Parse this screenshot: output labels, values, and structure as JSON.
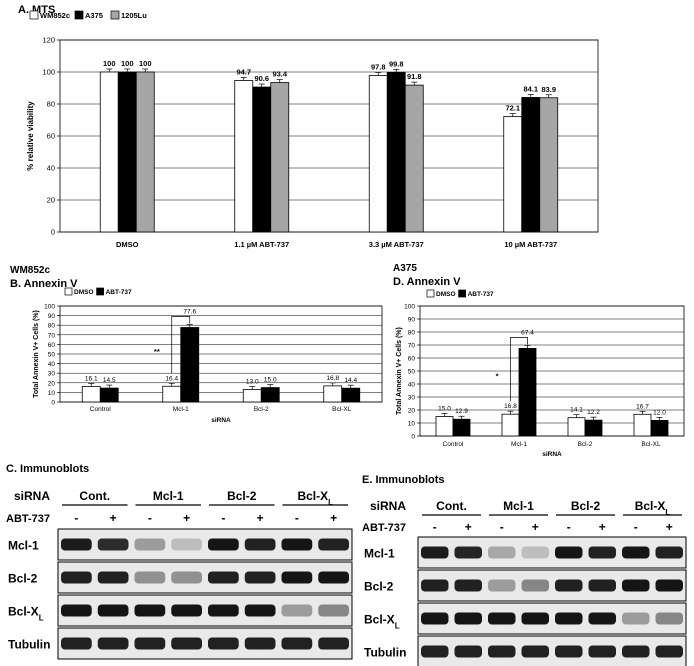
{
  "panels": {
    "a": "A.  MTS",
    "b": "B.  Annexin V",
    "b_cell": "WM852c",
    "c": "C. Immunoblots",
    "d": "D.  Annexin V",
    "d_cell": "A375",
    "e": "E. Immunoblots"
  },
  "colors": {
    "white_bar": "#ffffff",
    "black_bar": "#000000",
    "gray_bar": "#a6a6a6",
    "plot_bg": "#ffffff",
    "grid": "#000000"
  },
  "chart_data": [
    {
      "id": "A",
      "type": "bar",
      "ylabel": "% relative viability",
      "xlabel": "",
      "ylim": [
        0,
        120
      ],
      "yticks": [
        0,
        20,
        40,
        60,
        80,
        100,
        120
      ],
      "grid": true,
      "legend_position": "top-left",
      "categories": [
        "DMSO",
        "1.1 µM ABT-737",
        "3.3 µM ABT-737",
        "10 µM ABT-737"
      ],
      "series": [
        {
          "name": "WM852c",
          "values": [
            100,
            94.7,
            97.8,
            72.1
          ],
          "labels": [
            "100",
            "94.7",
            "97.8",
            "72.1"
          ],
          "color": "#ffffff"
        },
        {
          "name": "A375",
          "values": [
            100,
            90.6,
            99.8,
            84.1
          ],
          "labels": [
            "100",
            "90.6",
            "99.8",
            "84.1"
          ],
          "color": "#000000"
        },
        {
          "name": "1205Lu",
          "values": [
            100,
            93.4,
            91.8,
            83.9
          ],
          "labels": [
            "100",
            "93.4",
            "91.8",
            "83.9"
          ],
          "color": "#a6a6a6"
        }
      ]
    },
    {
      "id": "B",
      "type": "bar",
      "ylabel": "Total Annexin V+ Cells (%)",
      "xlabel": "siRNA",
      "ylim": [
        0,
        100
      ],
      "yticks": [
        0,
        10,
        20,
        30,
        40,
        50,
        60,
        70,
        80,
        90,
        100
      ],
      "grid": true,
      "legend_position": "top-left",
      "categories": [
        "Control",
        "Mcl-1",
        "Bcl-2",
        "Bcl-XL"
      ],
      "series": [
        {
          "name": "DMSO",
          "values": [
            16.1,
            16.4,
            13.0,
            16.8
          ],
          "labels": [
            "16.1",
            "16.4",
            "13.0",
            "16.8"
          ],
          "color": "#ffffff"
        },
        {
          "name": "ABT-737",
          "values": [
            14.5,
            77.6,
            15.0,
            14.4
          ],
          "labels": [
            "14.5",
            "77.6",
            "15.0",
            "14.4"
          ],
          "color": "#000000"
        }
      ],
      "significance": {
        "text": "**",
        "category": "Mcl-1"
      }
    },
    {
      "id": "D",
      "type": "bar",
      "ylabel": "Total Annexin V+ Cells (%)",
      "xlabel": "siRNA",
      "ylim": [
        0,
        100
      ],
      "yticks": [
        0,
        10,
        20,
        30,
        40,
        50,
        60,
        70,
        80,
        90,
        100
      ],
      "grid": true,
      "legend_position": "top-left",
      "categories": [
        "Control",
        "Mcl-1",
        "Bcl-2",
        "Bcl-XL"
      ],
      "series": [
        {
          "name": "DMSO",
          "values": [
            15.0,
            16.8,
            14.1,
            16.7
          ],
          "labels": [
            "15.0",
            "16.8",
            "14.1",
            "16.7"
          ],
          "color": "#ffffff"
        },
        {
          "name": "ABT-737",
          "values": [
            12.9,
            67.4,
            12.2,
            12.0
          ],
          "labels": [
            "12.9",
            "67.4",
            "12.2",
            "12.0"
          ],
          "color": "#000000"
        }
      ],
      "significance": {
        "text": "*",
        "category": "Mcl-1"
      }
    }
  ],
  "blots": [
    {
      "id": "C",
      "sirna_label": "siRNA",
      "drug_label": "ABT-737",
      "groups": [
        "Cont.",
        "Mcl-1",
        "Bcl-2",
        "Bcl-X"
      ],
      "last_group_subscript": "L",
      "treatments": [
        "-",
        "+",
        "-",
        "+",
        "-",
        "+",
        "-",
        "+"
      ],
      "rows": [
        {
          "label": "Mcl-1",
          "sub": "",
          "intensity": [
            0.92,
            0.85,
            0.35,
            0.2,
            0.95,
            0.9,
            0.95,
            0.9
          ]
        },
        {
          "label": "Bcl-2",
          "sub": "",
          "intensity": [
            0.9,
            0.9,
            0.4,
            0.4,
            0.9,
            0.9,
            0.95,
            0.95
          ]
        },
        {
          "label": "Bcl-X",
          "sub": "L",
          "intensity": [
            0.95,
            0.95,
            0.95,
            0.95,
            0.95,
            0.95,
            0.35,
            0.45
          ]
        },
        {
          "label": "Tubulin",
          "sub": "",
          "intensity": [
            0.9,
            0.9,
            0.9,
            0.9,
            0.9,
            0.9,
            0.9,
            0.9
          ]
        }
      ]
    },
    {
      "id": "E",
      "sirna_label": "siRNA",
      "drug_label": "ABT-737",
      "groups": [
        "Cont.",
        "Mcl-1",
        "Bcl-2",
        "Bcl-X"
      ],
      "last_group_subscript": "L",
      "treatments": [
        "-",
        "+",
        "-",
        "+",
        "-",
        "+",
        "-",
        "+"
      ],
      "rows": [
        {
          "label": "Mcl-1",
          "sub": "",
          "intensity": [
            0.92,
            0.88,
            0.3,
            0.2,
            0.95,
            0.9,
            0.95,
            0.9
          ]
        },
        {
          "label": "Bcl-2",
          "sub": "",
          "intensity": [
            0.9,
            0.9,
            0.35,
            0.45,
            0.9,
            0.9,
            0.95,
            0.95
          ]
        },
        {
          "label": "Bcl-X",
          "sub": "L",
          "intensity": [
            0.95,
            0.95,
            0.95,
            0.95,
            0.95,
            0.95,
            0.35,
            0.45
          ]
        },
        {
          "label": "Tubulin",
          "sub": "",
          "intensity": [
            0.9,
            0.9,
            0.9,
            0.9,
            0.9,
            0.9,
            0.9,
            0.9
          ]
        }
      ]
    }
  ]
}
